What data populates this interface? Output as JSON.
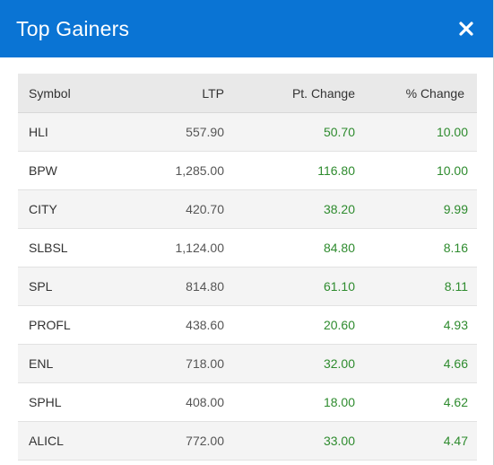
{
  "dialog": {
    "title": "Top Gainers",
    "close_icon": "close-icon"
  },
  "colors": {
    "header_bg": "#0a74d4",
    "positive": "#2e8b2e"
  },
  "table": {
    "columns": [
      "Symbol",
      "LTP",
      "Pt. Change",
      "% Change"
    ],
    "rows": [
      {
        "symbol": "HLI",
        "ltp": "557.90",
        "pt_change": "50.70",
        "pct_change": "10.00"
      },
      {
        "symbol": "BPW",
        "ltp": "1,285.00",
        "pt_change": "116.80",
        "pct_change": "10.00"
      },
      {
        "symbol": "CITY",
        "ltp": "420.70",
        "pt_change": "38.20",
        "pct_change": "9.99"
      },
      {
        "symbol": "SLBSL",
        "ltp": "1,124.00",
        "pt_change": "84.80",
        "pct_change": "8.16"
      },
      {
        "symbol": "SPL",
        "ltp": "814.80",
        "pt_change": "61.10",
        "pct_change": "8.11"
      },
      {
        "symbol": "PROFL",
        "ltp": "438.60",
        "pt_change": "20.60",
        "pct_change": "4.93"
      },
      {
        "symbol": "ENL",
        "ltp": "718.00",
        "pt_change": "32.00",
        "pct_change": "4.66"
      },
      {
        "symbol": "SPHL",
        "ltp": "408.00",
        "pt_change": "18.00",
        "pct_change": "4.62"
      },
      {
        "symbol": "ALICL",
        "ltp": "772.00",
        "pt_change": "33.00",
        "pct_change": "4.47"
      }
    ]
  }
}
